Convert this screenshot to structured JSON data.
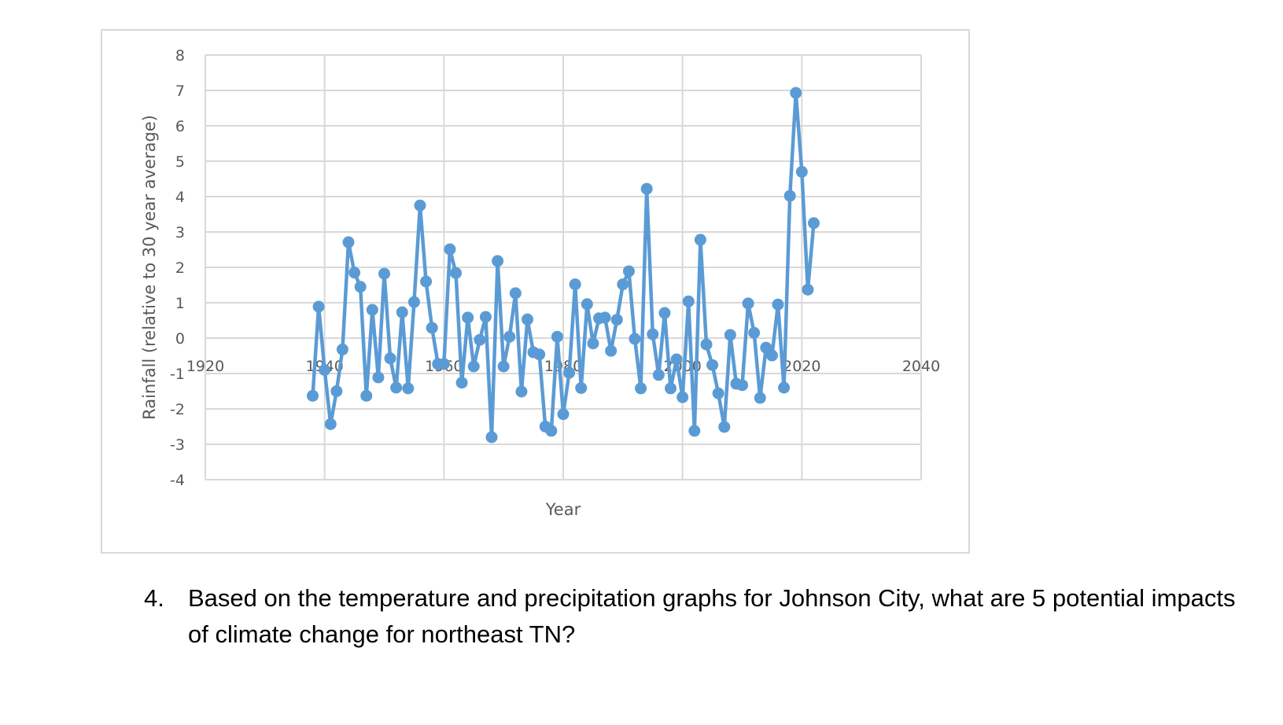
{
  "chart_data": {
    "type": "line",
    "title": "",
    "xlabel": "Year",
    "ylabel": "Rainfall (relative to 30 year average)",
    "xlim": [
      1920,
      2040
    ],
    "ylim": [
      -4,
      8
    ],
    "xticks": [
      1920,
      1940,
      1960,
      1980,
      2000,
      2020,
      2040
    ],
    "yticks": [
      8,
      7,
      6,
      5,
      4,
      3,
      2,
      1,
      0,
      -1,
      -2,
      -3,
      -4
    ],
    "grid": true,
    "markers": true,
    "legend": "none",
    "series_color": "#5b9bd5",
    "x": [
      1938,
      1939,
      1940,
      1941,
      1942,
      1943,
      1944,
      1945,
      1946,
      1947,
      1948,
      1949,
      1950,
      1951,
      1952,
      1953,
      1954,
      1955,
      1956,
      1957,
      1958,
      1959,
      1960,
      1961,
      1962,
      1963,
      1964,
      1965,
      1966,
      1967,
      1968,
      1969,
      1970,
      1971,
      1972,
      1973,
      1974,
      1975,
      1976,
      1977,
      1978,
      1979,
      1980,
      1981,
      1982,
      1983,
      1984,
      1985,
      1986,
      1987,
      1988,
      1989,
      1990,
      1991,
      1992,
      1993,
      1994,
      1995,
      1996,
      1997,
      1998,
      1999,
      2000,
      2001,
      2002,
      2003,
      2004,
      2005,
      2006,
      2007,
      2008,
      2009,
      2010,
      2011,
      2012,
      2013,
      2014,
      2015,
      2016,
      2017,
      2018,
      2019,
      2020,
      2021,
      2022
    ],
    "values": [
      -1.63,
      0.89,
      -0.9,
      -2.43,
      -1.5,
      -0.32,
      2.71,
      1.85,
      1.45,
      -1.63,
      0.8,
      -1.11,
      1.82,
      -0.57,
      -1.4,
      0.73,
      -1.42,
      1.02,
      3.75,
      1.6,
      0.29,
      -0.73,
      -0.73,
      2.51,
      1.84,
      -1.26,
      0.58,
      -0.8,
      -0.05,
      0.6,
      -2.8,
      2.18,
      -0.8,
      0.04,
      1.27,
      -1.51,
      0.53,
      -0.4,
      -0.46,
      -2.5,
      -2.62,
      0.04,
      -2.15,
      -0.98,
      1.52,
      -1.41,
      0.96,
      -0.15,
      0.56,
      0.58,
      -0.36,
      0.52,
      1.52,
      1.89,
      -0.02,
      -1.42,
      4.22,
      0.11,
      -1.04,
      0.71,
      -1.42,
      -0.6,
      -1.67,
      1.04,
      -2.62,
      2.78,
      -0.18,
      -0.76,
      -1.56,
      -2.51,
      0.09,
      -1.29,
      -1.33,
      0.98,
      0.15,
      -1.69,
      -0.27,
      -0.49,
      0.95,
      -1.4,
      4.02,
      6.93,
      4.7,
      1.37,
      3.25
    ]
  },
  "question": {
    "number": "4.",
    "text": "Based on the temperature and precipitation graphs for Johnson City, what are 5 potential impacts of climate change for northeast TN?"
  }
}
